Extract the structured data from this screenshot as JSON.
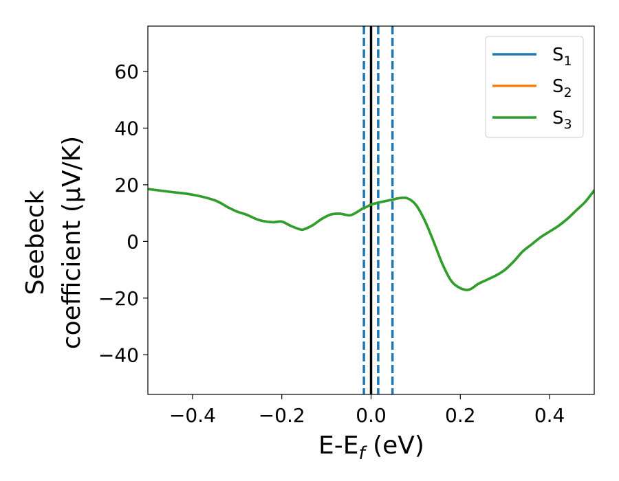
{
  "chart_data": {
    "type": "line",
    "xlabel": "E-E",
    "xlabel_sub": "f",
    "xlabel_unit": " (eV)",
    "ylabel_line1": "Seebeck",
    "ylabel_line2": "coefficient  (μV/K)",
    "xlim": [
      -0.5,
      0.5
    ],
    "ylim": [
      -54,
      76
    ],
    "x_ticks": [
      -0.4,
      -0.2,
      0.0,
      0.2,
      0.4
    ],
    "x_tick_labels": [
      "−0.4",
      "−0.2",
      "0.0",
      "0.2",
      "0.4"
    ],
    "y_ticks": [
      -40,
      -20,
      0,
      20,
      40,
      60
    ],
    "y_tick_labels": [
      "−40",
      "−20",
      "0",
      "20",
      "40",
      "60"
    ],
    "grid": false,
    "legend_position": "top-right",
    "x": [
      -0.5,
      -0.45,
      -0.4,
      -0.35,
      -0.32,
      -0.3,
      -0.28,
      -0.25,
      -0.22,
      -0.2,
      -0.18,
      -0.16,
      -0.15,
      -0.13,
      -0.11,
      -0.09,
      -0.07,
      -0.05,
      -0.04,
      -0.03,
      -0.02,
      -0.01,
      0.0,
      0.02,
      0.04,
      0.05,
      0.06,
      0.08,
      0.1,
      0.12,
      0.14,
      0.16,
      0.18,
      0.2,
      0.22,
      0.24,
      0.26,
      0.28,
      0.3,
      0.32,
      0.34,
      0.36,
      0.38,
      0.4,
      0.42,
      0.44,
      0.46,
      0.48,
      0.5
    ],
    "series": [
      {
        "name": "S₁",
        "label_base": "S",
        "label_sub": "1",
        "color": "#1f77b4",
        "values": [
          18.5,
          17.5,
          16.5,
          14.5,
          12,
          10.5,
          9.5,
          7.5,
          6.8,
          7,
          5.5,
          4.3,
          4.3,
          5.8,
          8,
          9.5,
          9.8,
          9.2,
          9.6,
          10.5,
          11.5,
          12.2,
          13,
          13.8,
          14.5,
          14.8,
          15.2,
          15.3,
          13,
          7.5,
          0,
          -8,
          -14,
          -16.5,
          -17,
          -15,
          -13.5,
          -12,
          -10,
          -7,
          -3.5,
          -1,
          1.5,
          3.5,
          5.5,
          8,
          11,
          14,
          18
        ]
      },
      {
        "name": "S₂",
        "label_base": "S",
        "label_sub": "2",
        "color": "#ff7f0e",
        "values": [
          18.5,
          17.5,
          16.5,
          14.5,
          12,
          10.5,
          9.5,
          7.5,
          6.8,
          7,
          5.5,
          4.3,
          4.3,
          5.8,
          8,
          9.5,
          9.8,
          9.2,
          9.6,
          10.5,
          11.5,
          12.2,
          13,
          13.8,
          14.5,
          14.8,
          15.2,
          15.3,
          13,
          7.5,
          0,
          -8,
          -14,
          -16.5,
          -17,
          -15,
          -13.5,
          -12,
          -10,
          -7,
          -3.5,
          -1,
          1.5,
          3.5,
          5.5,
          8,
          11,
          14,
          18
        ]
      },
      {
        "name": "S₃",
        "label_base": "S",
        "label_sub": "3",
        "color": "#2ca02c",
        "values": [
          18.5,
          17.5,
          16.5,
          14.5,
          12,
          10.5,
          9.5,
          7.5,
          6.8,
          7,
          5.5,
          4.3,
          4.3,
          5.8,
          8,
          9.5,
          9.8,
          9.2,
          9.6,
          10.5,
          11.5,
          12.2,
          13,
          13.8,
          14.5,
          14.8,
          15.2,
          15.3,
          13,
          7.5,
          0,
          -8,
          -14,
          -16.5,
          -17,
          -15,
          -13.5,
          -12,
          -10,
          -7,
          -3.5,
          -1,
          1.5,
          3.5,
          5.5,
          8,
          11,
          14,
          18
        ]
      }
    ],
    "vlines": [
      {
        "x": 0.0,
        "color": "#000000",
        "style": "solid"
      },
      {
        "x": -0.016,
        "color": "#1f77b4",
        "style": "dashed"
      },
      {
        "x": 0.016,
        "color": "#1f77b4",
        "style": "dashed"
      },
      {
        "x": 0.048,
        "color": "#1f77b4",
        "style": "dashed"
      }
    ]
  }
}
